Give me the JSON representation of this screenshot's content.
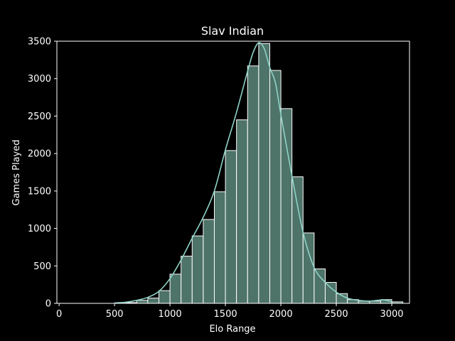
{
  "chart_data": {
    "type": "bar",
    "title": "Slav Indian",
    "xlabel": "Elo Range",
    "ylabel": "Games Played",
    "xlim": [
      -20,
      3160
    ],
    "ylim": [
      0,
      3500
    ],
    "xticks": [
      0,
      500,
      1000,
      1500,
      2000,
      2500,
      3000
    ],
    "yticks": [
      0,
      500,
      1000,
      1500,
      2000,
      2500,
      3000,
      3500
    ],
    "bin_width": 100,
    "bins": [
      {
        "start": 100,
        "value": 0
      },
      {
        "start": 200,
        "value": 0
      },
      {
        "start": 300,
        "value": 0
      },
      {
        "start": 400,
        "value": 0
      },
      {
        "start": 500,
        "value": 2
      },
      {
        "start": 600,
        "value": 10
      },
      {
        "start": 700,
        "value": 40
      },
      {
        "start": 800,
        "value": 70
      },
      {
        "start": 900,
        "value": 170
      },
      {
        "start": 1000,
        "value": 390
      },
      {
        "start": 1100,
        "value": 630
      },
      {
        "start": 1200,
        "value": 900
      },
      {
        "start": 1300,
        "value": 1120
      },
      {
        "start": 1400,
        "value": 1490
      },
      {
        "start": 1500,
        "value": 2040
      },
      {
        "start": 1600,
        "value": 2450
      },
      {
        "start": 1700,
        "value": 3170
      },
      {
        "start": 1800,
        "value": 3470
      },
      {
        "start": 1900,
        "value": 3110
      },
      {
        "start": 2000,
        "value": 2600
      },
      {
        "start": 2100,
        "value": 1690
      },
      {
        "start": 2200,
        "value": 940
      },
      {
        "start": 2300,
        "value": 460
      },
      {
        "start": 2400,
        "value": 280
      },
      {
        "start": 2500,
        "value": 130
      },
      {
        "start": 2600,
        "value": 50
      },
      {
        "start": 2700,
        "value": 30
      },
      {
        "start": 2800,
        "value": 30
      },
      {
        "start": 2900,
        "value": 50
      },
      {
        "start": 3000,
        "value": 20
      }
    ],
    "kde": {
      "x": [
        500,
        600,
        700,
        800,
        900,
        1000,
        1100,
        1200,
        1300,
        1400,
        1500,
        1600,
        1700,
        1750,
        1800,
        1850,
        1900,
        1950,
        2000,
        2100,
        2200,
        2300,
        2400,
        2500,
        2600,
        2700,
        2800,
        2900,
        2950,
        3000
      ],
      "y": [
        5,
        15,
        40,
        80,
        160,
        330,
        580,
        870,
        1150,
        1500,
        2050,
        2550,
        3100,
        3350,
        3480,
        3400,
        3150,
        2950,
        2520,
        1700,
        950,
        480,
        280,
        150,
        70,
        40,
        30,
        45,
        40,
        20
      ]
    },
    "grid": false,
    "colors": {
      "bar_fill": "#4e7369",
      "bar_edge": "#ffffff",
      "kde_line": "#8dd3c7",
      "background": "#000000",
      "axes": "#ffffff"
    }
  }
}
